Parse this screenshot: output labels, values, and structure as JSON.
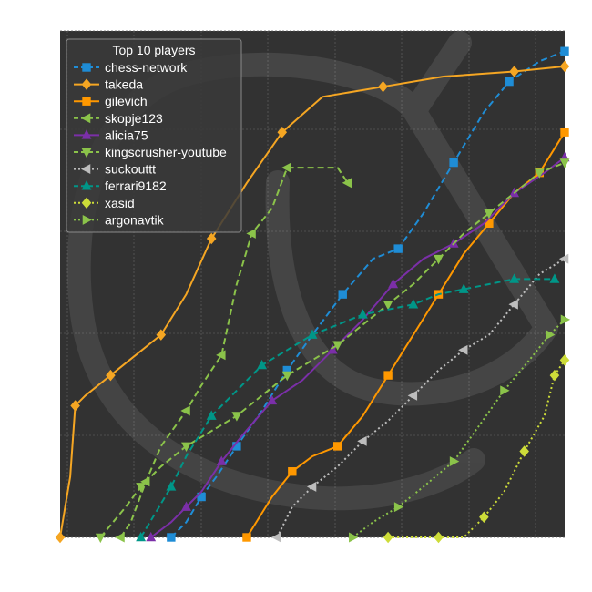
{
  "chart_data": {
    "type": "line",
    "title": "",
    "xlabel": "",
    "ylabel": "",
    "grid": true,
    "legend": {
      "title": "Top 10 players",
      "placement": "top-left"
    },
    "background": "#323232",
    "watermark": "lichess-knight-logo",
    "xlim": [
      0,
      100
    ],
    "ylim": [
      0,
      100
    ],
    "series": [
      {
        "name": "chess-network",
        "color": "#1f8dd6",
        "style": "dashed",
        "marker": "square",
        "points": [
          [
            22,
            0
          ],
          [
            25,
            3
          ],
          [
            28,
            8
          ],
          [
            31,
            12
          ],
          [
            35,
            18
          ],
          [
            40,
            25
          ],
          [
            45,
            33
          ],
          [
            50,
            40
          ],
          [
            56,
            48
          ],
          [
            62,
            55
          ],
          [
            67,
            57
          ],
          [
            72,
            64
          ],
          [
            78,
            74
          ],
          [
            84,
            84
          ],
          [
            89,
            90
          ],
          [
            95,
            94
          ],
          [
            100,
            96
          ]
        ]
      },
      {
        "name": "takeda",
        "color": "#f5a623",
        "style": "solid",
        "marker": "diamond",
        "points": [
          [
            0,
            0
          ],
          [
            2,
            12
          ],
          [
            3,
            26
          ],
          [
            5,
            28
          ],
          [
            10,
            32
          ],
          [
            15,
            36
          ],
          [
            20,
            40
          ],
          [
            25,
            48
          ],
          [
            30,
            59
          ],
          [
            37,
            70
          ],
          [
            44,
            80
          ],
          [
            52,
            87
          ],
          [
            64,
            89
          ],
          [
            76,
            91
          ],
          [
            90,
            92
          ],
          [
            100,
            93
          ]
        ]
      },
      {
        "name": "gilevich",
        "color": "#ff9800",
        "style": "solid",
        "marker": "square",
        "points": [
          [
            37,
            0
          ],
          [
            42,
            8
          ],
          [
            46,
            13
          ],
          [
            50,
            16
          ],
          [
            55,
            18
          ],
          [
            60,
            24
          ],
          [
            65,
            32
          ],
          [
            70,
            40
          ],
          [
            75,
            48
          ],
          [
            80,
            56
          ],
          [
            85,
            62
          ],
          [
            90,
            68
          ],
          [
            95,
            72
          ],
          [
            100,
            80
          ]
        ]
      },
      {
        "name": "skopje123",
        "color": "#8bc34a",
        "style": "dashed",
        "marker": "triangle-left",
        "points": [
          [
            12,
            0
          ],
          [
            14,
            3
          ],
          [
            17,
            11
          ],
          [
            20,
            18
          ],
          [
            25,
            25
          ],
          [
            28,
            30
          ],
          [
            32,
            36
          ],
          [
            35,
            50
          ],
          [
            38,
            60
          ],
          [
            42,
            65
          ],
          [
            45,
            73
          ],
          [
            55,
            73
          ],
          [
            57,
            70
          ]
        ]
      },
      {
        "name": "alicia75",
        "color": "#7b2fa8",
        "style": "solid",
        "marker": "triangle-up",
        "points": [
          [
            18,
            0
          ],
          [
            22,
            3
          ],
          [
            25,
            6
          ],
          [
            28,
            9
          ],
          [
            32,
            15
          ],
          [
            36,
            20
          ],
          [
            42,
            27
          ],
          [
            48,
            31
          ],
          [
            54,
            37
          ],
          [
            60,
            43
          ],
          [
            66,
            50
          ],
          [
            72,
            55
          ],
          [
            78,
            58
          ],
          [
            84,
            62
          ],
          [
            90,
            68
          ],
          [
            96,
            72
          ],
          [
            100,
            75
          ]
        ]
      },
      {
        "name": "kingscrusher-youtube",
        "color": "#8bc34a",
        "style": "dashed",
        "marker": "triangle-down",
        "points": [
          [
            8,
            0
          ],
          [
            13,
            6
          ],
          [
            16,
            10
          ],
          [
            20,
            14
          ],
          [
            25,
            18
          ],
          [
            30,
            21
          ],
          [
            35,
            24
          ],
          [
            40,
            28
          ],
          [
            45,
            32
          ],
          [
            50,
            35
          ],
          [
            55,
            38
          ],
          [
            60,
            42
          ],
          [
            65,
            46
          ],
          [
            70,
            50
          ],
          [
            75,
            55
          ],
          [
            80,
            60
          ],
          [
            85,
            64
          ],
          [
            90,
            68
          ],
          [
            95,
            72
          ],
          [
            100,
            74
          ]
        ]
      },
      {
        "name": "suckouttt",
        "color": "#bdbdbd",
        "style": "dotted",
        "marker": "triangle-left",
        "points": [
          [
            43,
            0
          ],
          [
            46,
            6
          ],
          [
            50,
            10
          ],
          [
            55,
            14
          ],
          [
            60,
            19
          ],
          [
            65,
            23
          ],
          [
            70,
            28
          ],
          [
            75,
            33
          ],
          [
            80,
            37
          ],
          [
            85,
            40
          ],
          [
            90,
            46
          ],
          [
            95,
            52
          ],
          [
            100,
            55
          ]
        ]
      },
      {
        "name": "ferrari9182",
        "color": "#009688",
        "style": "dashed",
        "marker": "triangle-up",
        "points": [
          [
            16,
            0
          ],
          [
            19,
            5
          ],
          [
            22,
            10
          ],
          [
            25,
            16
          ],
          [
            30,
            24
          ],
          [
            35,
            29
          ],
          [
            40,
            34
          ],
          [
            45,
            37
          ],
          [
            50,
            40
          ],
          [
            55,
            42
          ],
          [
            60,
            44
          ],
          [
            65,
            45
          ],
          [
            70,
            46
          ],
          [
            75,
            48
          ],
          [
            80,
            49
          ],
          [
            85,
            50
          ],
          [
            90,
            51
          ],
          [
            95,
            51
          ],
          [
            98,
            51
          ]
        ]
      },
      {
        "name": "xasid",
        "color": "#cddc39",
        "style": "dotted",
        "marker": "diamond",
        "points": [
          [
            65,
            0
          ],
          [
            70,
            0
          ],
          [
            75,
            0
          ],
          [
            80,
            0
          ],
          [
            84,
            4
          ],
          [
            88,
            9
          ],
          [
            92,
            17
          ],
          [
            96,
            24
          ],
          [
            98,
            32
          ],
          [
            100,
            35
          ]
        ]
      },
      {
        "name": "argonavtik",
        "color": "#8bc34a",
        "style": "dotted",
        "marker": "triangle-right",
        "points": [
          [
            58,
            0
          ],
          [
            62,
            3
          ],
          [
            67,
            6
          ],
          [
            72,
            10
          ],
          [
            78,
            15
          ],
          [
            83,
            22
          ],
          [
            88,
            29
          ],
          [
            93,
            35
          ],
          [
            97,
            40
          ],
          [
            100,
            43
          ]
        ]
      }
    ]
  }
}
